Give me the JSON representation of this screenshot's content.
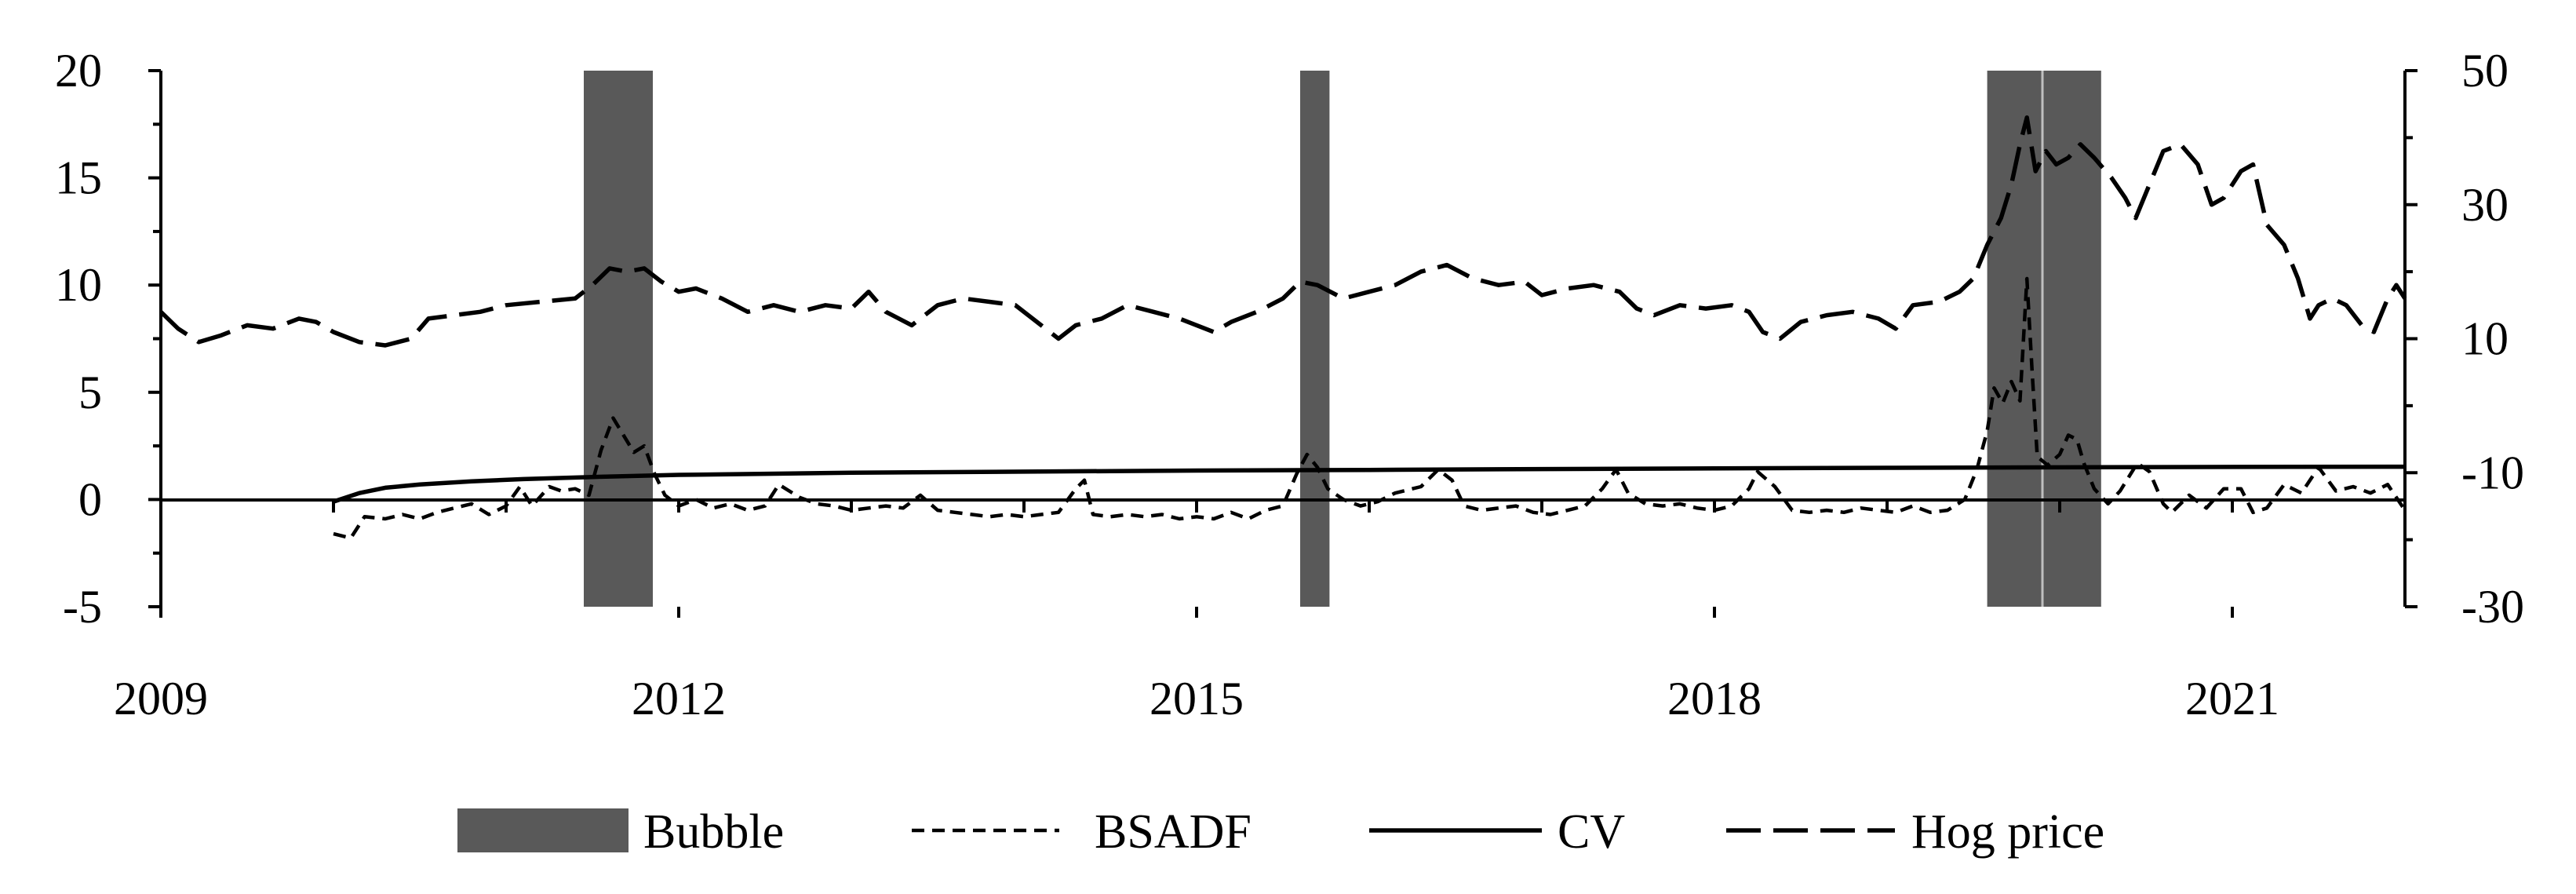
{
  "chart_data": {
    "type": "line",
    "x_ticks": [
      "2009",
      "2012",
      "2015",
      "2018",
      "2021"
    ],
    "x_range": [
      2009.0,
      2022.0
    ],
    "y_left": {
      "range": [
        -5,
        20
      ],
      "ticks": [
        "20",
        "15",
        "10",
        "5",
        "0",
        "-5"
      ]
    },
    "y_right": {
      "range": [
        -30,
        50
      ],
      "ticks": [
        "50",
        "30",
        "10",
        "-10",
        "-30"
      ]
    },
    "grid": false,
    "legend_position": "bottom",
    "legend": [
      {
        "key": "bubble",
        "label": "Bubble"
      },
      {
        "key": "bsadf",
        "label": "BSADF"
      },
      {
        "key": "cv",
        "label": "CV"
      },
      {
        "key": "hog",
        "label": "Hog price"
      }
    ],
    "bubble_periods": [
      {
        "start": 2011.45,
        "end": 2011.85
      },
      {
        "start": 2015.6,
        "end": 2015.77
      },
      {
        "start": 2019.58,
        "end": 2019.9
      },
      {
        "start": 2019.9,
        "end": 2020.24
      }
    ],
    "series": [
      {
        "key": "bsadf",
        "axis": "left",
        "points": [
          [
            2010.0,
            -1.6
          ],
          [
            2010.1,
            -1.8
          ],
          [
            2010.18,
            -0.8
          ],
          [
            2010.3,
            -0.9
          ],
          [
            2010.4,
            -0.7
          ],
          [
            2010.5,
            -0.9
          ],
          [
            2010.6,
            -0.6
          ],
          [
            2010.7,
            -0.4
          ],
          [
            2010.8,
            -0.2
          ],
          [
            2010.9,
            -0.7
          ],
          [
            2011.0,
            -0.3
          ],
          [
            2011.08,
            0.6
          ],
          [
            2011.15,
            -0.3
          ],
          [
            2011.25,
            0.6
          ],
          [
            2011.32,
            0.4
          ],
          [
            2011.4,
            0.5
          ],
          [
            2011.48,
            0.2
          ],
          [
            2011.55,
            2.3
          ],
          [
            2011.62,
            3.8
          ],
          [
            2011.68,
            3.0
          ],
          [
            2011.74,
            2.2
          ],
          [
            2011.8,
            2.5
          ],
          [
            2011.86,
            1.2
          ],
          [
            2011.92,
            0.2
          ],
          [
            2012.0,
            -0.3
          ],
          [
            2012.1,
            0.0
          ],
          [
            2012.2,
            -0.4
          ],
          [
            2012.3,
            -0.2
          ],
          [
            2012.4,
            -0.5
          ],
          [
            2012.5,
            -0.3
          ],
          [
            2012.58,
            0.7
          ],
          [
            2012.7,
            0.1
          ],
          [
            2012.8,
            -0.2
          ],
          [
            2012.9,
            -0.3
          ],
          [
            2013.0,
            -0.5
          ],
          [
            2013.1,
            -0.4
          ],
          [
            2013.2,
            -0.3
          ],
          [
            2013.3,
            -0.4
          ],
          [
            2013.4,
            0.2
          ],
          [
            2013.5,
            -0.5
          ],
          [
            2013.6,
            -0.6
          ],
          [
            2013.7,
            -0.7
          ],
          [
            2013.8,
            -0.8
          ],
          [
            2013.9,
            -0.7
          ],
          [
            2014.0,
            -0.8
          ],
          [
            2014.1,
            -0.7
          ],
          [
            2014.2,
            -0.6
          ],
          [
            2014.3,
            0.5
          ],
          [
            2014.35,
            0.9
          ],
          [
            2014.4,
            -0.7
          ],
          [
            2014.5,
            -0.8
          ],
          [
            2014.6,
            -0.7
          ],
          [
            2014.7,
            -0.8
          ],
          [
            2014.8,
            -0.7
          ],
          [
            2014.9,
            -0.9
          ],
          [
            2015.0,
            -0.8
          ],
          [
            2015.1,
            -0.9
          ],
          [
            2015.2,
            -0.6
          ],
          [
            2015.3,
            -0.9
          ],
          [
            2015.4,
            -0.5
          ],
          [
            2015.5,
            -0.3
          ],
          [
            2015.58,
            1.2
          ],
          [
            2015.64,
            2.1
          ],
          [
            2015.7,
            1.5
          ],
          [
            2015.76,
            0.5
          ],
          [
            2015.85,
            0.0
          ],
          [
            2015.95,
            -0.3
          ],
          [
            2016.05,
            -0.1
          ],
          [
            2016.15,
            0.3
          ],
          [
            2016.3,
            0.6
          ],
          [
            2016.4,
            1.4
          ],
          [
            2016.48,
            0.9
          ],
          [
            2016.55,
            -0.3
          ],
          [
            2016.65,
            -0.5
          ],
          [
            2016.75,
            -0.4
          ],
          [
            2016.85,
            -0.3
          ],
          [
            2016.95,
            -0.6
          ],
          [
            2017.05,
            -0.7
          ],
          [
            2017.15,
            -0.5
          ],
          [
            2017.25,
            -0.3
          ],
          [
            2017.35,
            0.5
          ],
          [
            2017.43,
            1.4
          ],
          [
            2017.5,
            0.3
          ],
          [
            2017.6,
            -0.2
          ],
          [
            2017.7,
            -0.3
          ],
          [
            2017.8,
            -0.2
          ],
          [
            2017.9,
            -0.4
          ],
          [
            2018.0,
            -0.5
          ],
          [
            2018.1,
            -0.3
          ],
          [
            2018.2,
            0.5
          ],
          [
            2018.25,
            1.3
          ],
          [
            2018.35,
            0.6
          ],
          [
            2018.45,
            -0.5
          ],
          [
            2018.55,
            -0.6
          ],
          [
            2018.65,
            -0.5
          ],
          [
            2018.75,
            -0.6
          ],
          [
            2018.85,
            -0.4
          ],
          [
            2018.95,
            -0.5
          ],
          [
            2019.05,
            -0.6
          ],
          [
            2019.15,
            -0.3
          ],
          [
            2019.25,
            -0.6
          ],
          [
            2019.35,
            -0.5
          ],
          [
            2019.45,
            0.0
          ],
          [
            2019.52,
            1.4
          ],
          [
            2019.58,
            3.2
          ],
          [
            2019.62,
            5.2
          ],
          [
            2019.67,
            4.5
          ],
          [
            2019.72,
            5.5
          ],
          [
            2019.77,
            4.6
          ],
          [
            2019.81,
            10.3
          ],
          [
            2019.84,
            6.0
          ],
          [
            2019.87,
            2.0
          ],
          [
            2019.93,
            1.6
          ],
          [
            2020.0,
            2.1
          ],
          [
            2020.05,
            3.0
          ],
          [
            2020.1,
            2.8
          ],
          [
            2020.14,
            1.7
          ],
          [
            2020.2,
            0.5
          ],
          [
            2020.28,
            -0.2
          ],
          [
            2020.35,
            0.4
          ],
          [
            2020.45,
            1.7
          ],
          [
            2020.52,
            1.3
          ],
          [
            2020.6,
            -0.2
          ],
          [
            2020.65,
            -0.6
          ],
          [
            2020.75,
            0.2
          ],
          [
            2020.85,
            -0.4
          ],
          [
            2020.95,
            0.5
          ],
          [
            2021.05,
            0.5
          ],
          [
            2021.12,
            -0.6
          ],
          [
            2021.2,
            -0.4
          ],
          [
            2021.3,
            0.7
          ],
          [
            2021.4,
            0.3
          ],
          [
            2021.5,
            1.5
          ],
          [
            2021.6,
            0.4
          ],
          [
            2021.7,
            0.6
          ],
          [
            2021.8,
            0.3
          ],
          [
            2021.9,
            0.7
          ],
          [
            2022.0,
            -0.5
          ]
        ]
      },
      {
        "key": "cv",
        "axis": "left",
        "points": [
          [
            2010.0,
            -0.1
          ],
          [
            2010.15,
            0.3
          ],
          [
            2010.3,
            0.55
          ],
          [
            2010.5,
            0.7
          ],
          [
            2010.8,
            0.85
          ],
          [
            2011.1,
            0.95
          ],
          [
            2011.5,
            1.05
          ],
          [
            2012.0,
            1.15
          ],
          [
            2013.0,
            1.25
          ],
          [
            2014.0,
            1.3
          ],
          [
            2015.0,
            1.35
          ],
          [
            2016.0,
            1.38
          ],
          [
            2017.0,
            1.42
          ],
          [
            2018.0,
            1.45
          ],
          [
            2019.0,
            1.48
          ],
          [
            2020.0,
            1.5
          ],
          [
            2021.0,
            1.52
          ],
          [
            2022.0,
            1.53
          ]
        ]
      },
      {
        "key": "hog",
        "axis": "right",
        "points": [
          [
            2009.0,
            14
          ],
          [
            2009.1,
            11.5
          ],
          [
            2009.22,
            9.5
          ],
          [
            2009.35,
            10.5
          ],
          [
            2009.5,
            12
          ],
          [
            2009.65,
            11.5
          ],
          [
            2009.8,
            13
          ],
          [
            2009.9,
            12.5
          ],
          [
            2010.0,
            11
          ],
          [
            2010.15,
            9.5
          ],
          [
            2010.3,
            9
          ],
          [
            2010.45,
            10
          ],
          [
            2010.55,
            13
          ],
          [
            2010.7,
            13.5
          ],
          [
            2010.85,
            14
          ],
          [
            2011.0,
            15
          ],
          [
            2011.2,
            15.5
          ],
          [
            2011.4,
            16
          ],
          [
            2011.5,
            18
          ],
          [
            2011.6,
            20.5
          ],
          [
            2011.7,
            20
          ],
          [
            2011.8,
            20.5
          ],
          [
            2011.9,
            18.5
          ],
          [
            2012.0,
            17
          ],
          [
            2012.1,
            17.5
          ],
          [
            2012.25,
            16
          ],
          [
            2012.4,
            14
          ],
          [
            2012.55,
            15
          ],
          [
            2012.7,
            14
          ],
          [
            2012.85,
            15
          ],
          [
            2013.0,
            14.5
          ],
          [
            2013.1,
            17
          ],
          [
            2013.2,
            14
          ],
          [
            2013.35,
            12
          ],
          [
            2013.5,
            15
          ],
          [
            2013.65,
            16
          ],
          [
            2013.8,
            15.5
          ],
          [
            2013.95,
            15
          ],
          [
            2014.1,
            12
          ],
          [
            2014.2,
            10
          ],
          [
            2014.3,
            12
          ],
          [
            2014.45,
            13
          ],
          [
            2014.6,
            15
          ],
          [
            2014.75,
            14
          ],
          [
            2014.9,
            13
          ],
          [
            2015.0,
            12
          ],
          [
            2015.1,
            11
          ],
          [
            2015.2,
            12.5
          ],
          [
            2015.35,
            14
          ],
          [
            2015.5,
            16
          ],
          [
            2015.6,
            18.5
          ],
          [
            2015.7,
            18
          ],
          [
            2015.85,
            16
          ],
          [
            2016.0,
            17
          ],
          [
            2016.15,
            18
          ],
          [
            2016.3,
            20
          ],
          [
            2016.45,
            21
          ],
          [
            2016.6,
            19
          ],
          [
            2016.75,
            18
          ],
          [
            2016.9,
            18.5
          ],
          [
            2017.0,
            16.5
          ],
          [
            2017.15,
            17.5
          ],
          [
            2017.3,
            18
          ],
          [
            2017.45,
            17
          ],
          [
            2017.55,
            14.5
          ],
          [
            2017.65,
            13.5
          ],
          [
            2017.8,
            15
          ],
          [
            2017.95,
            14.5
          ],
          [
            2018.1,
            15
          ],
          [
            2018.2,
            14
          ],
          [
            2018.28,
            11
          ],
          [
            2018.38,
            10
          ],
          [
            2018.5,
            12.5
          ],
          [
            2018.65,
            13.5
          ],
          [
            2018.8,
            14
          ],
          [
            2018.95,
            13
          ],
          [
            2019.05,
            11.5
          ],
          [
            2019.15,
            15
          ],
          [
            2019.3,
            15.5
          ],
          [
            2019.42,
            17
          ],
          [
            2019.5,
            19
          ],
          [
            2019.58,
            24
          ],
          [
            2019.66,
            28
          ],
          [
            2019.72,
            33
          ],
          [
            2019.77,
            39
          ],
          [
            2019.81,
            43
          ],
          [
            2019.86,
            35
          ],
          [
            2019.92,
            38
          ],
          [
            2019.98,
            36
          ],
          [
            2020.05,
            37
          ],
          [
            2020.12,
            39
          ],
          [
            2020.2,
            37
          ],
          [
            2020.3,
            34
          ],
          [
            2020.38,
            31
          ],
          [
            2020.44,
            28
          ],
          [
            2020.52,
            33
          ],
          [
            2020.6,
            38
          ],
          [
            2020.7,
            39
          ],
          [
            2020.8,
            36
          ],
          [
            2020.88,
            30
          ],
          [
            2020.95,
            31
          ],
          [
            2021.05,
            35
          ],
          [
            2021.12,
            36
          ],
          [
            2021.2,
            27
          ],
          [
            2021.3,
            24
          ],
          [
            2021.38,
            19
          ],
          [
            2021.45,
            13
          ],
          [
            2021.5,
            15
          ],
          [
            2021.58,
            16
          ],
          [
            2021.66,
            15
          ],
          [
            2021.75,
            12
          ],
          [
            2021.82,
            11
          ],
          [
            2021.9,
            16
          ],
          [
            2021.95,
            18
          ],
          [
            2022.0,
            16
          ]
        ]
      }
    ]
  }
}
